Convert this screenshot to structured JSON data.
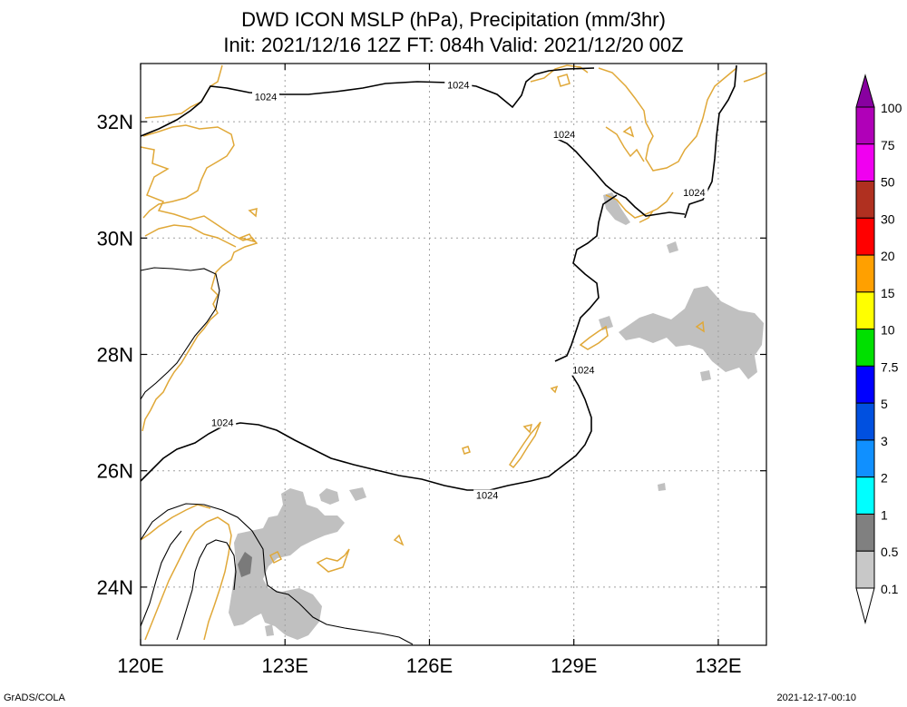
{
  "title": {
    "line1": "DWD ICON MSLP (hPa), Precipitation (mm/3hr)",
    "line2": "Init: 2021/12/16 12Z  FT: 084h  Valid: 2021/12/20 00Z"
  },
  "footer": {
    "left": "GrADS/COLA",
    "right": "2021-12-17-00:10"
  },
  "map": {
    "lon_range": [
      120,
      133
    ],
    "lat_range": [
      23,
      33
    ],
    "lon_ticks": [
      {
        "value": 120,
        "label": "120E"
      },
      {
        "value": 123,
        "label": "123E"
      },
      {
        "value": 126,
        "label": "126E"
      },
      {
        "value": 129,
        "label": "129E"
      },
      {
        "value": 132,
        "label": "132E"
      }
    ],
    "lat_ticks": [
      {
        "value": 24,
        "label": "24N"
      },
      {
        "value": 26,
        "label": "26N"
      },
      {
        "value": 28,
        "label": "28N"
      },
      {
        "value": 30,
        "label": "30N"
      },
      {
        "value": 32,
        "label": "32N"
      }
    ],
    "grid": true,
    "isobar_labels": [
      {
        "text": "1024",
        "lon": 122.6,
        "lat": 32.4
      },
      {
        "text": "1024",
        "lon": 126.6,
        "lat": 32.6
      },
      {
        "text": "1024",
        "lon": 128.8,
        "lat": 31.75
      },
      {
        "text": "1024",
        "lon": 131.5,
        "lat": 30.75
      },
      {
        "text": "1024",
        "lon": 129.2,
        "lat": 27.7
      },
      {
        "text": "1024",
        "lon": 121.7,
        "lat": 26.8
      },
      {
        "text": "1024",
        "lon": 127.2,
        "lat": 25.55
      }
    ],
    "colors": {
      "coast": "#e0a838",
      "isobar": "#000000",
      "precip_light": "#c0c0c0",
      "precip_mid": "#7a7a7a",
      "grid": "#a0a0a0"
    }
  },
  "colorbar": {
    "levels": [
      "100",
      "75",
      "50",
      "30",
      "20",
      "15",
      "10",
      "7.5",
      "5",
      "3",
      "2",
      "1",
      "0.5",
      "0.1"
    ],
    "colors": [
      "#8800a0",
      "#b000b8",
      "#f000f0",
      "#b03020",
      "#ff0000",
      "#ffa000",
      "#ffff00",
      "#00e000",
      "#0000ff",
      "#0050e0",
      "#1090ff",
      "#00ffff",
      "#808080",
      "#c8c8c8",
      "#ffffff"
    ]
  }
}
